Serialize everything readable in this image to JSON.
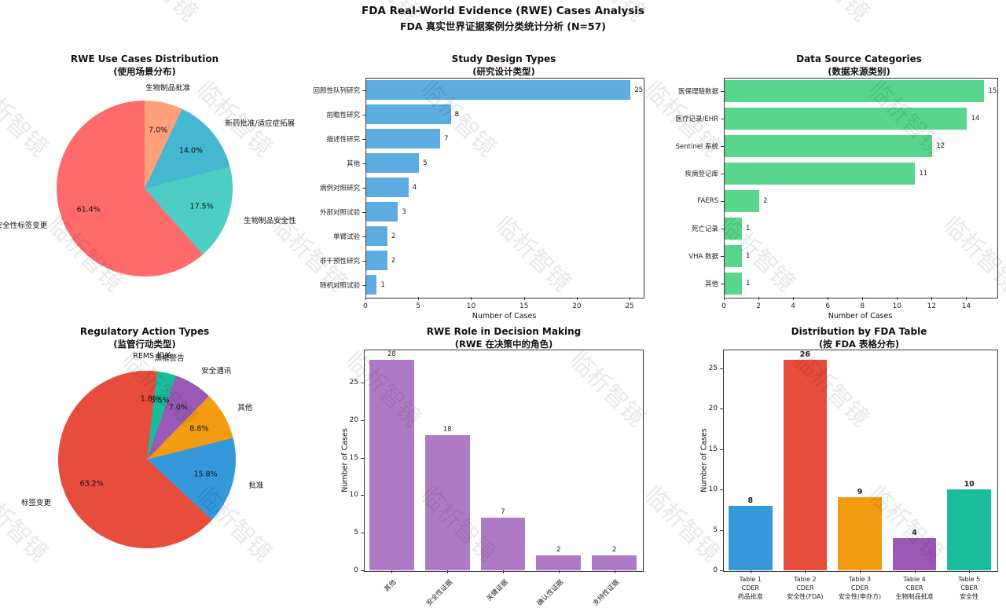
{
  "page_title": {
    "line1": "FDA Real-World Evidence (RWE) Cases Analysis",
    "line2": "FDA 真实世界证据案例分类统计分析 (N=57)"
  },
  "watermark": {
    "text": "临析智镜"
  },
  "chart_data": [
    {
      "id": "use-cases-pie",
      "type": "pie",
      "title": "RWE Use Cases Distribution",
      "subtitle": "(使用场景分布)",
      "labels": [
        "安全性标签变更",
        "生物制品安全性",
        "新药批准/适应症拓展",
        "生物制品批准"
      ],
      "values_pct": [
        61.4,
        17.5,
        14.0,
        7.0
      ],
      "colors": [
        "#FF6B6B",
        "#4ECDC4",
        "#45B7D1",
        "#FFA07A"
      ],
      "start_angle": 90,
      "counterclockwise": true
    },
    {
      "id": "study-design-bar",
      "type": "bar",
      "orientation": "horizontal",
      "title": "Study Design Types",
      "subtitle": "(研究设计类型)",
      "categories": [
        "回顾性队列研究",
        "前瞻性研究",
        "描述性研究",
        "其他",
        "病例对照研究",
        "外部对照试验",
        "单臂试验",
        "非干预性研究",
        "随机对照试验"
      ],
      "values": [
        25,
        8,
        7,
        5,
        4,
        3,
        2,
        2,
        1
      ],
      "bar_color": "#5DADE2",
      "xlabel": "Number of Cases",
      "xticks": [
        0,
        5,
        10,
        15,
        20,
        25
      ],
      "xlim": [
        0,
        26.25
      ]
    },
    {
      "id": "data-source-bar",
      "type": "bar",
      "orientation": "horizontal",
      "title": "Data Source Categories",
      "subtitle": "(数据来源类别)",
      "categories": [
        "医保理赔数据",
        "医疗记录/EHR",
        "Sentinel 系统",
        "疾病登记库",
        "FAERS",
        "死亡记录",
        "VHA 数据",
        "其他"
      ],
      "values": [
        15,
        14,
        12,
        11,
        2,
        1,
        1,
        1
      ],
      "bar_color": "#58D68D",
      "xlabel": "Number of Cases",
      "xticks": [
        0,
        2,
        4,
        6,
        8,
        10,
        12,
        14
      ],
      "xlim": [
        0,
        15.75
      ]
    },
    {
      "id": "regulatory-pie",
      "type": "pie",
      "title": "Regulatory Action Types",
      "subtitle": "(监管行动类型)",
      "labels": [
        "标签变更",
        "批准",
        "其他",
        "安全通讯",
        "黑框警告",
        "REMS 相关"
      ],
      "values_pct": [
        63.2,
        15.8,
        8.8,
        7.0,
        3.5,
        1.8
      ],
      "colors": [
        "#E74C3C",
        "#3498DB",
        "#F39C12",
        "#9B59B6",
        "#1ABC9C",
        "#E74C3C"
      ],
      "start_angle": 90,
      "counterclockwise": true
    },
    {
      "id": "rwe-role-bar",
      "type": "bar",
      "orientation": "vertical",
      "title": "RWE Role in Decision Making",
      "subtitle": "(RWE 在决策中的角色)",
      "categories": [
        "其他",
        "安全性证据",
        "关键证据",
        "确认性证据",
        "支持性证据"
      ],
      "values": [
        28,
        18,
        7,
        2,
        2
      ],
      "bar_color": "#AF7AC5",
      "ylabel": "Number of Cases",
      "yticks": [
        0,
        5,
        10,
        15,
        20,
        25
      ],
      "ylim": [
        0,
        29.4
      ],
      "tick_rotation": 45,
      "value_bold": false
    },
    {
      "id": "fda-table-bar",
      "type": "bar",
      "orientation": "vertical",
      "title": "Distribution by FDA Table",
      "subtitle": "(按 FDA 表格分布)",
      "categories": [
        [
          "Table 1",
          "CDER",
          "药品批准"
        ],
        [
          "Table 2",
          "CDER",
          "安全性(FDA)"
        ],
        [
          "Table 3",
          "CDER",
          "安全性(申办方)"
        ],
        [
          "Table 4",
          "CBER",
          "生物制品批准"
        ],
        [
          "Table 5",
          "CBER",
          "安全性"
        ]
      ],
      "values": [
        8,
        26,
        9,
        4,
        10
      ],
      "bar_colors": [
        "#3498DB",
        "#E74C3C",
        "#F39C12",
        "#9B59B6",
        "#1ABC9C"
      ],
      "ylabel": "Number of Cases",
      "yticks": [
        0,
        5,
        10,
        15,
        20,
        25
      ],
      "ylim": [
        0,
        27.3
      ],
      "value_bold": true
    }
  ]
}
